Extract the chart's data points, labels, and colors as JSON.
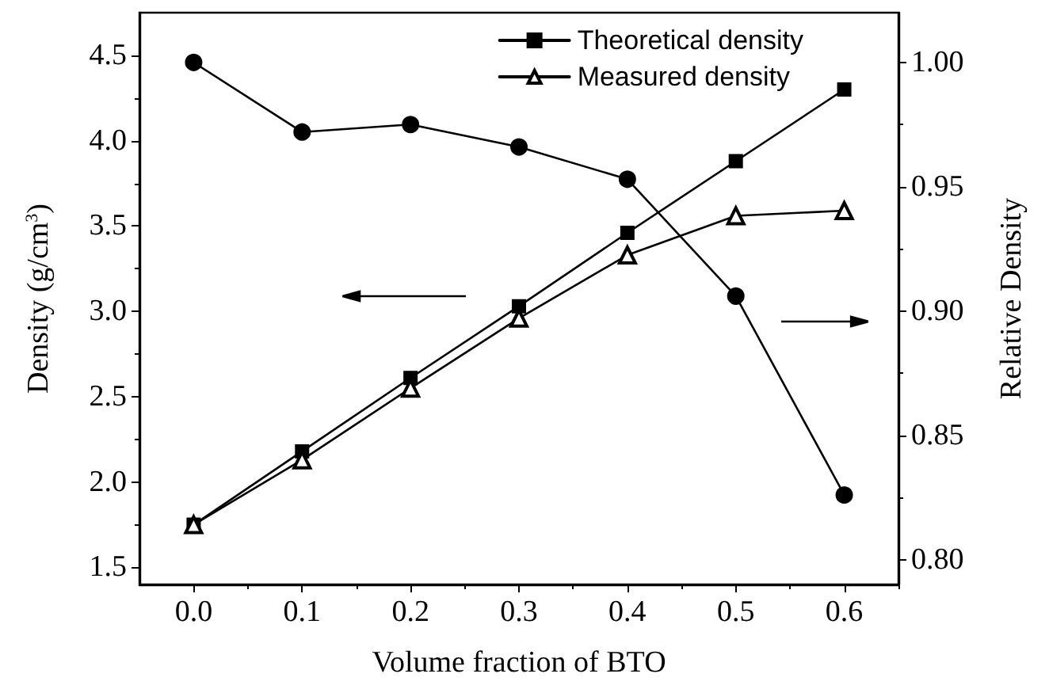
{
  "chart_data": {
    "type": "line",
    "xlabel": "Volume fraction of BTO",
    "ylabel": "Density (g/cm$^{3}$)",
    "y2label": "Relative Density",
    "x": [
      0.0,
      0.1,
      0.2,
      0.3,
      0.4,
      0.5,
      0.6
    ],
    "xlim": [
      -0.05,
      0.65
    ],
    "xticks": [
      {
        "value": 0,
        "label": "0.0"
      },
      0.1,
      0.2,
      0.3,
      0.4,
      0.5,
      0.6
    ],
    "ylim": [
      1.4,
      4.75
    ],
    "yticks": [
      1.5,
      {
        "value": 2,
        "label": "2.0"
      },
      2.5,
      {
        "value": 3,
        "label": "3.0"
      },
      3.5,
      {
        "value": 4,
        "label": "4.0"
      },
      4.5
    ],
    "y2lim": [
      0.79,
      1.02
    ],
    "y2ticks": [
      {
        "value": 0.8,
        "label": "0.80"
      },
      0.85,
      {
        "value": 0.9,
        "label": "0.90"
      },
      0.95,
      {
        "value": 1,
        "label": "1.00"
      }
    ],
    "series": [
      {
        "name": "Theoretical density",
        "color": "#000000",
        "marker": "square",
        "values": [
          1.75,
          2.18,
          2.61,
          3.03,
          3.46,
          3.88,
          4.3
        ]
      },
      {
        "name": "Measured density",
        "color": "#000000",
        "marker": "triangle",
        "values": [
          1.75,
          2.13,
          2.55,
          2.96,
          3.33,
          3.56,
          3.59
        ]
      },
      {
        "color": "#000000",
        "marker": "circle",
        "axis": "y2",
        "values": [
          1.0,
          0.972,
          0.975,
          0.966,
          0.953,
          0.906,
          0.826
        ]
      }
    ],
    "legend": "top right",
    "grid": false,
    "line_style": "solid"
  }
}
